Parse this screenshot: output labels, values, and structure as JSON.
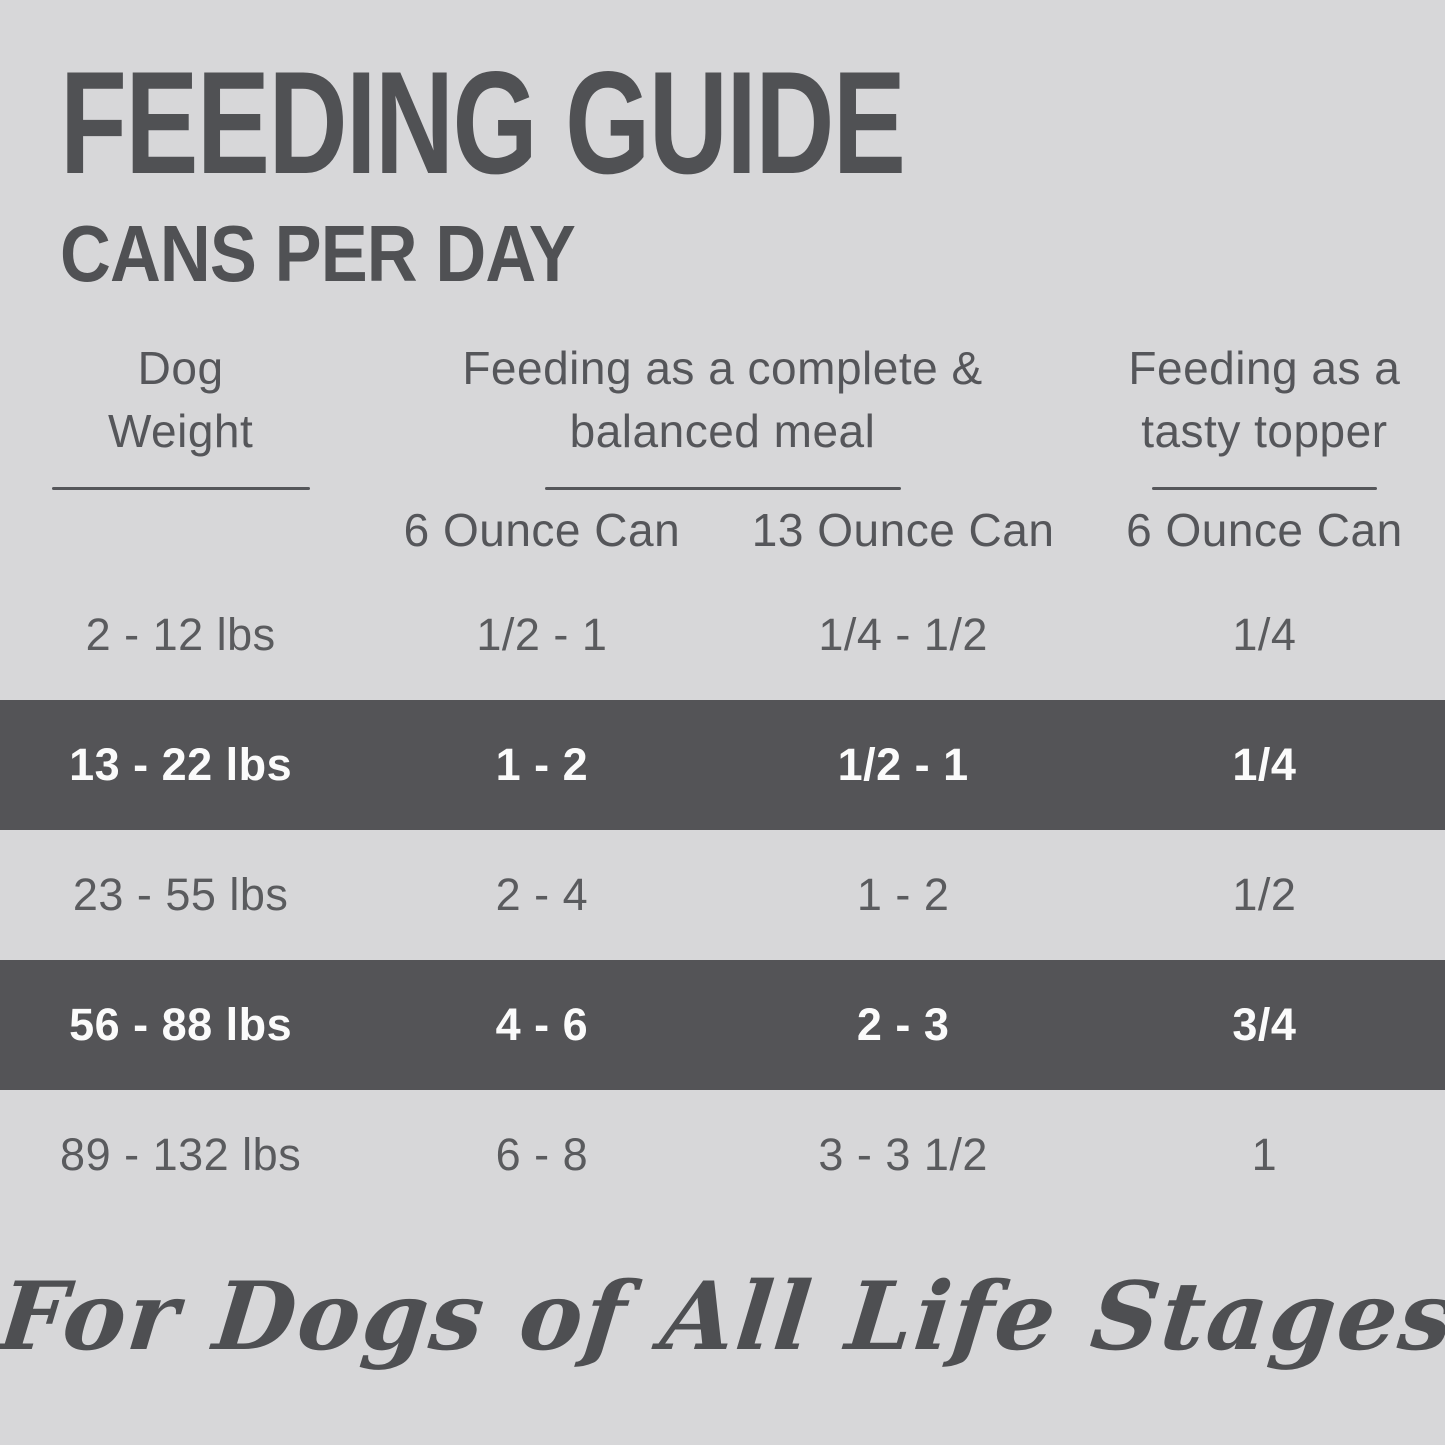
{
  "colors": {
    "background": "#d7d7d9",
    "dark_band": "#545457",
    "title_text": "#505154",
    "body_text": "#5a5b5e",
    "band_text": "#fbfbfb"
  },
  "header": {
    "title": "FEEDING GUIDE",
    "subtitle": "CANS PER DAY"
  },
  "table": {
    "group_headers": [
      {
        "lines": [
          "Dog",
          "Weight"
        ]
      },
      {
        "lines": [
          "Feeding as a complete &",
          "balanced meal"
        ]
      },
      {
        "lines": [
          "Feeding as a",
          "tasty topper"
        ]
      }
    ],
    "sub_headers": [
      "6 Ounce Can",
      "13 Ounce Can",
      "6 Ounce Can"
    ],
    "rows": [
      {
        "cells": [
          "2 - 12 lbs",
          "1/2 - 1",
          "1/4 - 1/2",
          "1/4"
        ],
        "highlight": false
      },
      {
        "cells": [
          "13 - 22 lbs",
          "1 - 2",
          "1/2 - 1",
          "1/4"
        ],
        "highlight": true
      },
      {
        "cells": [
          "23 - 55 lbs",
          "2 - 4",
          "1 - 2",
          "1/2"
        ],
        "highlight": false
      },
      {
        "cells": [
          "56 - 88 lbs",
          "4 - 6",
          "2 - 3",
          "3/4"
        ],
        "highlight": true
      },
      {
        "cells": [
          "89 - 132 lbs",
          "6 - 8",
          "3 - 3 1/2",
          "1"
        ],
        "highlight": false
      }
    ]
  },
  "footer": {
    "tagline": "For Dogs of All Life Stages"
  },
  "chart_data": {
    "type": "table",
    "title": "FEEDING GUIDE",
    "subtitle": "CANS PER DAY",
    "columns": [
      "Dog Weight",
      "Feeding as a complete & balanced meal - 6 Ounce Can",
      "Feeding as a complete & balanced meal - 13 Ounce Can",
      "Feeding as a tasty topper - 6 Ounce Can"
    ],
    "rows": [
      [
        "2 - 12 lbs",
        "1/2 - 1",
        "1/4 - 1/2",
        "1/4"
      ],
      [
        "13 - 22 lbs",
        "1 - 2",
        "1/2 - 1",
        "1/4"
      ],
      [
        "23 - 55 lbs",
        "2 - 4",
        "1 - 2",
        "1/2"
      ],
      [
        "56 - 88 lbs",
        "4 - 6",
        "2 - 3",
        "3/4"
      ],
      [
        "89 - 132 lbs",
        "6 - 8",
        "3 - 3 1/2",
        "1"
      ]
    ],
    "highlighted_row_indices": [
      1,
      3
    ],
    "footnote": "For Dogs of All Life Stages"
  }
}
